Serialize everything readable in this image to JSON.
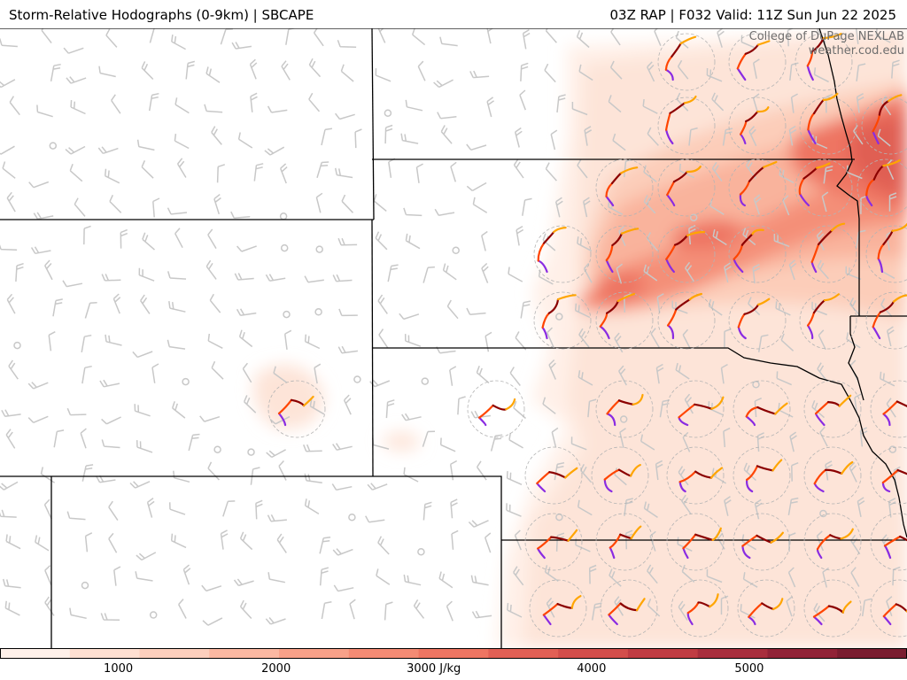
{
  "header": {
    "title_left": "Storm-Relative Hodographs (0-9km) | SBCAPE",
    "title_right": "03Z RAP | F032 Valid: 11Z Sun Jun 22 2025"
  },
  "credit": {
    "line1": "College of DuPage NEXLAB",
    "line2": "weather.cod.edu"
  },
  "colorbar": {
    "variable": "SBCAPE",
    "units": "J/kg",
    "ticks": [
      {
        "value": 1000,
        "label": "1000"
      },
      {
        "value": 2000,
        "label": "2000"
      },
      {
        "value": 3000,
        "label": "3000 J/kg"
      },
      {
        "value": 4000,
        "label": "4000"
      },
      {
        "value": 5000,
        "label": "5000"
      }
    ],
    "range": [
      250,
      6000
    ],
    "colors": [
      "#fff1ea",
      "#ffe0d2",
      "#fdcfbd",
      "#fbb8a2",
      "#f8a189",
      "#f48b74",
      "#ee7562",
      "#e26055",
      "#d34e4b",
      "#c03c43",
      "#a82e3d",
      "#912337",
      "#7a1d30"
    ]
  },
  "map": {
    "background": "#ffffff",
    "border_color": "#000000",
    "barb_color": "#c8c8c8",
    "hodograph_colors": {
      "layer_0_1km": "#8a2be2",
      "layer_1_3km": "#ff4500",
      "layer_3_6km": "#8b0000",
      "layer_6_9km": "#ffa500"
    }
  }
}
